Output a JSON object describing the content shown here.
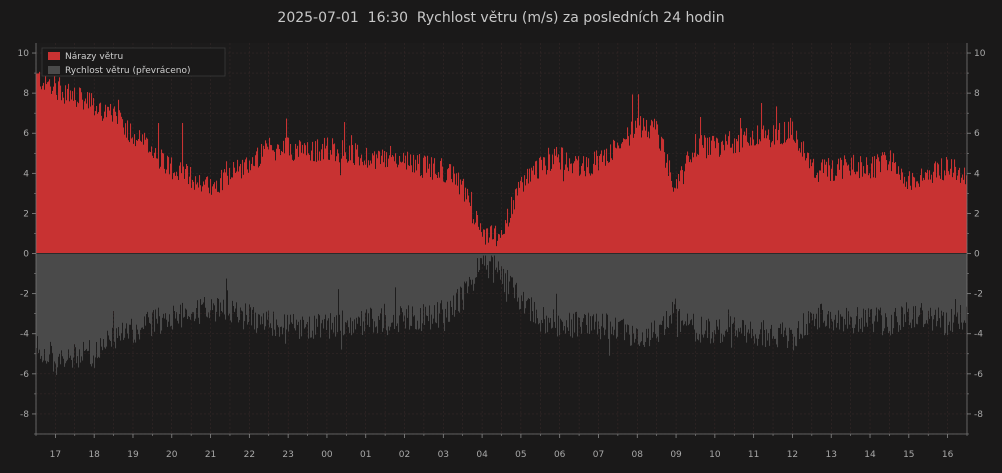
{
  "title": "2025-07-01  16:30  Rychlost větru (m/s) za posledních 24 hodin",
  "colors": {
    "background": "#1a1919",
    "plot_background": "#1c1b1b",
    "gust": "#c83232",
    "speed": "#4a4a4a",
    "grid": "#3a2a2a",
    "text": "#a8a8a8"
  },
  "legend": {
    "gust_label": "Nárazy větru",
    "speed_label": "Rychlost větru (převráceno)",
    "placement": "top-left"
  },
  "chart_data": {
    "type": "bar",
    "title": "2025-07-01  16:30  Rychlost větru (m/s) za posledních 24 hodin",
    "xlabel": "",
    "ylabel": "",
    "ylim": [
      -9,
      10.5
    ],
    "yticks": [
      10,
      8,
      6,
      4,
      2,
      0,
      -2,
      -4,
      -6,
      -8
    ],
    "x_tick_labels": [
      "17",
      "18",
      "19",
      "20",
      "21",
      "22",
      "23",
      "00",
      "01",
      "02",
      "03",
      "04",
      "05",
      "06",
      "07",
      "08",
      "09",
      "10",
      "11",
      "12",
      "13",
      "14",
      "15",
      "16"
    ],
    "x_range_hours": [
      16.5,
      40.5
    ],
    "grid": true,
    "series": [
      {
        "name": "Nárazy větru",
        "direction": "up",
        "hours": [
          16.5,
          17.0,
          17.5,
          18.0,
          18.5,
          19.0,
          19.5,
          20.0,
          20.5,
          21.0,
          21.5,
          22.0,
          22.5,
          23.0,
          23.5,
          24.0,
          24.5,
          25.0,
          25.5,
          26.0,
          26.5,
          27.0,
          27.5,
          28.0,
          28.5,
          29.0,
          29.5,
          30.0,
          30.5,
          31.0,
          31.5,
          32.0,
          32.5,
          33.0,
          33.5,
          34.0,
          34.5,
          35.0,
          35.5,
          36.0,
          36.5,
          37.0,
          37.5,
          38.0,
          38.5,
          39.0,
          39.5,
          40.0,
          40.5
        ],
        "values": [
          8.8,
          8.3,
          7.8,
          7.4,
          6.8,
          6.0,
          5.1,
          4.3,
          3.8,
          3.3,
          4.0,
          4.5,
          5.2,
          5.3,
          5.0,
          5.3,
          5.0,
          4.8,
          4.8,
          4.7,
          4.3,
          4.2,
          3.4,
          0.8,
          1.0,
          3.4,
          4.4,
          4.8,
          4.3,
          4.6,
          5.3,
          6.3,
          6.2,
          3.2,
          5.4,
          5.3,
          5.6,
          5.8,
          5.9,
          6.2,
          4.2,
          4.1,
          4.4,
          4.2,
          4.6,
          3.7,
          4.0,
          4.3,
          3.8
        ]
      },
      {
        "name": "Rychlost větru (převráceno)",
        "direction": "down",
        "hours": [
          16.5,
          17.0,
          17.5,
          18.0,
          18.5,
          19.0,
          19.5,
          20.0,
          20.5,
          21.0,
          21.5,
          22.0,
          22.5,
          23.0,
          23.5,
          24.0,
          24.5,
          25.0,
          25.5,
          26.0,
          26.5,
          27.0,
          27.5,
          28.0,
          28.5,
          29.0,
          29.5,
          30.0,
          30.5,
          31.0,
          31.5,
          32.0,
          32.5,
          33.0,
          33.5,
          34.0,
          34.5,
          35.0,
          35.5,
          36.0,
          36.5,
          37.0,
          37.5,
          38.0,
          38.5,
          39.0,
          39.5,
          40.0,
          40.5
        ],
        "values": [
          4.5,
          5.5,
          5.2,
          4.9,
          4.3,
          3.9,
          3.5,
          3.1,
          2.9,
          2.8,
          3.0,
          3.2,
          3.5,
          3.6,
          3.6,
          3.6,
          3.5,
          3.4,
          3.4,
          3.3,
          3.2,
          3.0,
          2.2,
          0.5,
          1.0,
          2.5,
          3.2,
          3.5,
          3.6,
          3.6,
          3.8,
          4.0,
          4.0,
          2.5,
          3.8,
          3.8,
          3.8,
          4.0,
          4.0,
          4.2,
          3.2,
          3.1,
          3.4,
          3.2,
          3.5,
          3.0,
          3.2,
          3.4,
          3.2
        ]
      }
    ]
  }
}
